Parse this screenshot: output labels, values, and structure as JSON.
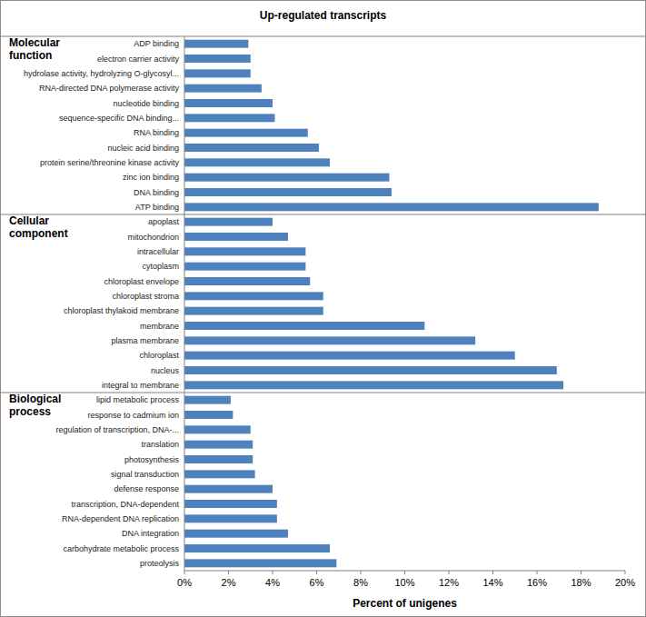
{
  "chart_data": [
    {
      "type": "bar",
      "orientation": "horizontal",
      "title": "Up-regulated transcripts",
      "subtitle": "Molecular function",
      "categories": [
        "ADP binding",
        "electron carrier activity",
        "hydrolase activity, hydrolyzing O-glycosyl...",
        "RNA-directed DNA polymerase activity",
        "nucleotide binding",
        "sequence-specific DNA binding...",
        "RNA binding",
        "nucleic acid binding",
        "protein serine/threonine kinase activity",
        "zinc ion binding",
        "DNA binding",
        "ATP binding"
      ],
      "values": [
        2.9,
        3.0,
        3.0,
        3.5,
        4.0,
        4.1,
        5.6,
        6.1,
        6.6,
        9.3,
        9.4,
        18.8
      ],
      "color": "#4f81bd",
      "xlim": [
        0,
        20
      ],
      "grid": false,
      "tick_labels": "y"
    },
    {
      "type": "bar",
      "orientation": "horizontal",
      "subtitle": "Cellular component",
      "categories": [
        "apoplast",
        "mitochondrion",
        "intracellular",
        "cytoplasm",
        "chloroplast envelope",
        "chloroplast stroma",
        "chloroplast thylakoid membrane",
        "membrane",
        "plasma membrane",
        "chloroplast",
        "nucleus",
        "integral to membrane"
      ],
      "values": [
        4.0,
        4.7,
        5.5,
        5.5,
        5.7,
        6.3,
        6.3,
        10.9,
        13.2,
        15.0,
        16.9,
        17.2
      ],
      "color": "#4f81bd",
      "xlim": [
        0,
        20
      ],
      "grid": false,
      "tick_labels": "y"
    },
    {
      "type": "bar",
      "orientation": "horizontal",
      "subtitle": "Biological process",
      "x_label": "Percent of unigenes",
      "categories": [
        "lipid metabolic process",
        "response to cadmium ion",
        "regulation of transcription, DNA-...",
        "translation",
        "photosynthesis",
        "signal transduction",
        "defense response",
        "transcription, DNA-dependent",
        "RNA-dependent DNA replication",
        "DNA integration",
        "carbohydrate metabolic process",
        "proteolysis"
      ],
      "values": [
        2.1,
        2.2,
        3.0,
        3.1,
        3.1,
        3.2,
        4.0,
        4.2,
        4.2,
        4.7,
        6.6,
        6.9
      ],
      "color": "#4f81bd",
      "xlim": [
        0,
        20
      ],
      "grid": false,
      "tick_labels": true,
      "xticks": [
        {
          "value": 0,
          "label": "0%"
        },
        {
          "value": 2,
          "label": "2%"
        },
        {
          "value": 4,
          "label": "4%"
        },
        {
          "value": 6,
          "label": "6%"
        },
        {
          "value": 8,
          "label": "8%"
        },
        {
          "value": 10,
          "label": "10%"
        },
        {
          "value": 12,
          "label": "12%"
        },
        {
          "value": 14,
          "label": "14%"
        },
        {
          "value": 16,
          "label": "16%"
        },
        {
          "value": 18,
          "label": "18%"
        },
        {
          "value": 20,
          "label": "20%"
        }
      ]
    }
  ]
}
